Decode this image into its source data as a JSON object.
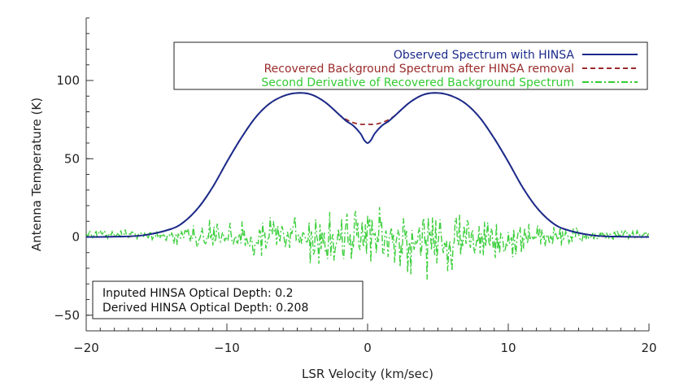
{
  "chart_data": {
    "type": "line",
    "title": "",
    "xlabel": "LSR Velocity (km/sec)",
    "ylabel": "Antenna Temperature (K)",
    "xlim": [
      -20,
      20
    ],
    "ylim": [
      -60,
      140
    ],
    "x_ticks": [
      -20,
      -10,
      0,
      10,
      20
    ],
    "x_tick_labels": [
      "−20",
      "−10",
      "0",
      "10",
      "20"
    ],
    "y_ticks": [
      -50,
      0,
      50,
      100
    ],
    "y_tick_labels": [
      "−50",
      "0",
      "50",
      "100"
    ],
    "x_minor_step": 1,
    "y_minor_step": 10,
    "grid": false,
    "series": [
      {
        "name": "Observed Spectrum with HINSA",
        "color": "#1a2a8a",
        "style": "solid",
        "x": [
          -20,
          -18,
          -16,
          -14,
          -13,
          -12,
          -11,
          -10,
          -9,
          -8,
          -7,
          -6,
          -5,
          -4,
          -3,
          -2,
          -1.5,
          -1,
          -0.5,
          -0.25,
          0,
          0.25,
          0.5,
          1,
          1.5,
          2,
          3,
          4,
          5,
          6,
          7,
          8,
          9,
          10,
          11,
          12,
          13,
          14,
          16,
          18,
          20
        ],
        "y": [
          0,
          0.2,
          1,
          5,
          10,
          19,
          32,
          48,
          63,
          76,
          85,
          90,
          92,
          91,
          86,
          78,
          74,
          71,
          66,
          62,
          60,
          62,
          66,
          71,
          74,
          78,
          86,
          91,
          92,
          90,
          85,
          76,
          63,
          48,
          32,
          19,
          10,
          5,
          1,
          0.2,
          0
        ]
      },
      {
        "name": "Recovered Background Spectrum after HINSA removal",
        "color": "#9a2a2a",
        "style": "dashed",
        "x": [
          -20,
          -18,
          -16,
          -14,
          -13,
          -12,
          -11,
          -10,
          -9,
          -8,
          -7,
          -6,
          -5,
          -4,
          -3,
          -2,
          -1.5,
          -1,
          -0.5,
          0,
          0.5,
          1,
          1.5,
          2,
          3,
          4,
          5,
          6,
          7,
          8,
          9,
          10,
          11,
          12,
          13,
          14,
          16,
          18,
          20
        ],
        "y": [
          0,
          0.2,
          1,
          5,
          10,
          19,
          32,
          48,
          63,
          76,
          85,
          90,
          92,
          91,
          86,
          78,
          75,
          73,
          72,
          72,
          72,
          73,
          75,
          78,
          86,
          91,
          92,
          90,
          85,
          76,
          63,
          48,
          32,
          19,
          10,
          5,
          1,
          0.2,
          0
        ]
      },
      {
        "name": "Second Derivative of Recovered Background Spectrum",
        "color": "#33cc33",
        "style": "dash-dot",
        "noisy": true,
        "x": [
          -20,
          -16,
          -14,
          -12,
          -10,
          -8,
          -6,
          -4,
          -2,
          0,
          2,
          4,
          6,
          8,
          10,
          12,
          14,
          16,
          20
        ],
        "y_min": [
          -2,
          -2,
          -6,
          -8,
          -12,
          -16,
          -18,
          -20,
          -22,
          -20,
          -24,
          -30,
          -22,
          -20,
          -16,
          -10,
          -6,
          -3,
          -2
        ],
        "y_max": [
          6,
          5,
          8,
          10,
          13,
          14,
          16,
          20,
          22,
          26,
          22,
          20,
          16,
          14,
          12,
          10,
          8,
          5,
          5
        ]
      }
    ],
    "legend": {
      "placement": "top-right",
      "entries": [
        {
          "label": "Observed Spectrum with HINSA",
          "color": "#1a2a8a",
          "style": "solid"
        },
        {
          "label": "Recovered Background Spectrum after HINSA removal",
          "color": "#9a2a2a",
          "style": "dashed"
        },
        {
          "label": "Second Derivative of Recovered Background Spectrum",
          "color": "#33cc33",
          "style": "dash-dot"
        }
      ]
    },
    "annotation": {
      "placement": "bottom-left",
      "lines": [
        "Inputed HINSA Optical Depth: 0.2",
        "Derived HINSA Optical Depth: 0.208"
      ]
    }
  }
}
